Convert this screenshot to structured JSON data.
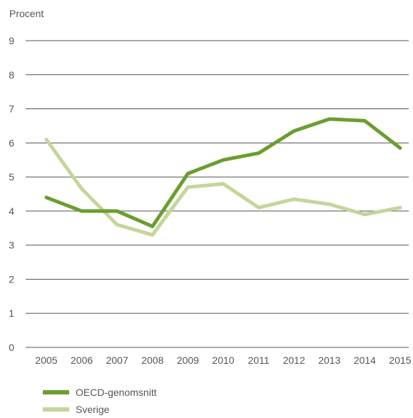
{
  "chart_data": {
    "type": "line",
    "ylabel": "Procent",
    "ylim": [
      0,
      9
    ],
    "y_ticks": [
      "0",
      "1",
      "2",
      "3",
      "4",
      "5",
      "6",
      "7",
      "8",
      "9"
    ],
    "x": [
      "2005",
      "2006",
      "2007",
      "2008",
      "2009",
      "2010",
      "2011",
      "2012",
      "2013",
      "2014",
      "2015"
    ],
    "grid": true,
    "legend_position": "bottom-left",
    "series": [
      {
        "name": "OECD-genomsnitt",
        "color": "#6a9e2f",
        "values": [
          4.4,
          4.0,
          4.0,
          3.55,
          5.1,
          5.5,
          5.7,
          6.35,
          6.7,
          6.65,
          5.85
        ]
      },
      {
        "name": "Sverige",
        "color": "#c4d69a",
        "values": [
          6.1,
          4.65,
          3.6,
          3.3,
          4.7,
          4.8,
          4.1,
          4.35,
          4.2,
          3.9,
          4.1
        ]
      }
    ]
  }
}
